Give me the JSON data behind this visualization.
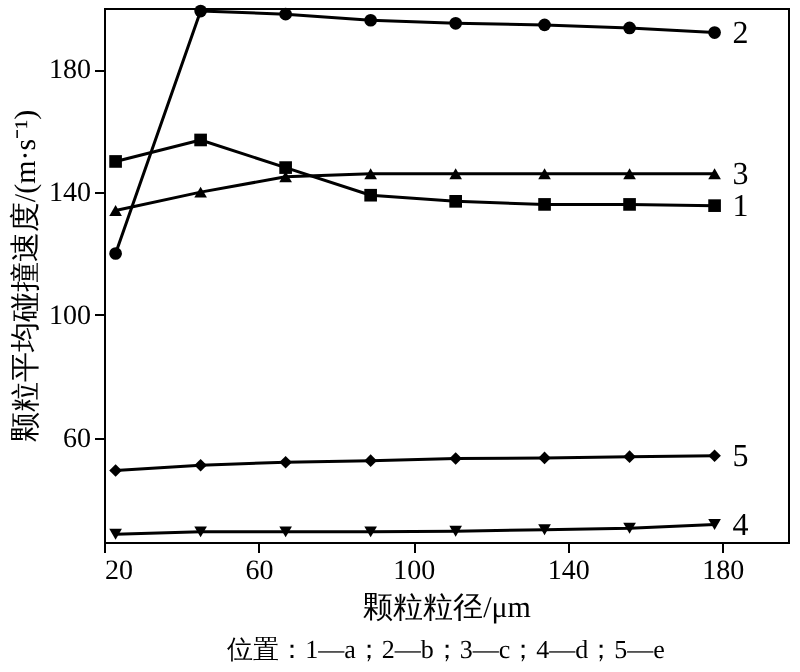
{
  "chart_data": {
    "type": "line",
    "xlabel": "颗粒粒径/μm",
    "ylabel": "颗粒平均碰撞速度/(m·s⁻¹)",
    "x": [
      23,
      45,
      67,
      89,
      111,
      134,
      156,
      178
    ],
    "series": [
      {
        "name": "1",
        "color": "#000000",
        "marker": "square",
        "values": [
          150,
          157,
          148,
          139,
          137,
          136,
          136,
          135.6
        ]
      },
      {
        "name": "2",
        "color": "#000000",
        "marker": "circle",
        "values": [
          120,
          199,
          198,
          196,
          195,
          194.5,
          193.5,
          192
        ]
      },
      {
        "name": "3",
        "color": "#000000",
        "marker": "triangle",
        "values": [
          134,
          140,
          145,
          146,
          146,
          146,
          146,
          146
        ]
      },
      {
        "name": "4",
        "color": "#000000",
        "marker": "triangle-down",
        "values": [
          28.5,
          29.3,
          29.3,
          29.3,
          29.5,
          30,
          30.5,
          31.7
        ]
      },
      {
        "name": "5",
        "color": "#000000",
        "marker": "diamond",
        "values": [
          49.3,
          51,
          52,
          52.5,
          53.2,
          53.4,
          53.8,
          54.1
        ]
      }
    ],
    "xlim": [
      20,
      197
    ],
    "xticks": [
      20,
      60,
      100,
      140,
      180
    ],
    "ylim": [
      26,
      200
    ],
    "yticks": [
      60,
      100,
      140,
      180
    ],
    "grid": false,
    "line_style": "solid",
    "annotations": [
      "位置：1—a；2—b；3—c；4—d；5—e"
    ]
  }
}
